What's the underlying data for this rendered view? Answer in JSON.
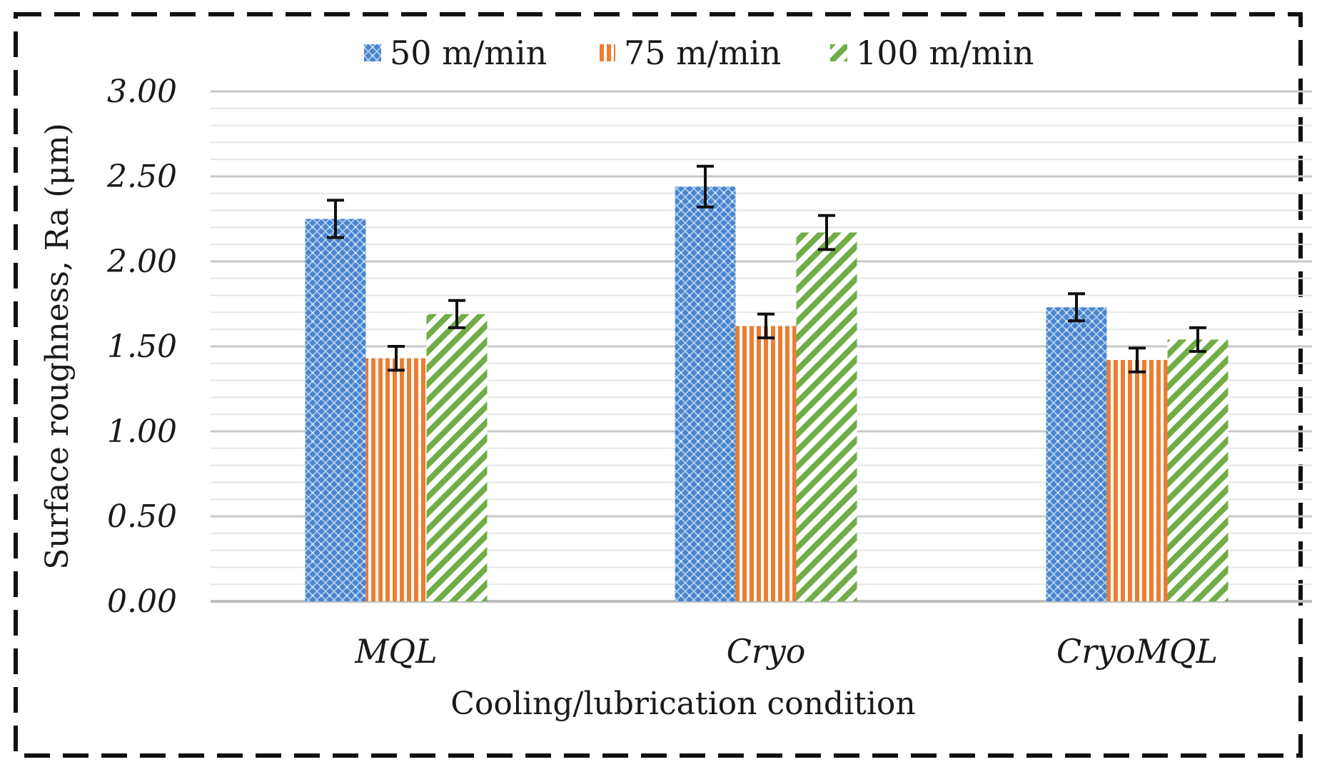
{
  "chart_data": {
    "type": "bar",
    "categories": [
      "MQL",
      "Cryo",
      "CryoMQL"
    ],
    "series": [
      {
        "name": "50 m/min",
        "values": [
          2.25,
          2.44,
          1.73
        ],
        "errors": [
          0.11,
          0.12,
          0.08
        ],
        "color": "#4a86d0",
        "pattern": "crosshatch"
      },
      {
        "name": "75 m/min",
        "values": [
          1.43,
          1.62,
          1.42
        ],
        "errors": [
          0.07,
          0.07,
          0.07
        ],
        "color": "#ed7d31",
        "pattern": "vertical-stripes"
      },
      {
        "name": "100 m/min",
        "values": [
          1.69,
          2.17,
          1.54
        ],
        "errors": [
          0.08,
          0.1,
          0.07
        ],
        "color": "#70ad47",
        "pattern": "diagonal-stripes"
      }
    ],
    "title": "",
    "xlabel": "Cooling/lubrication condition",
    "ylabel": "Surface roughness, Ra (μm)",
    "ylim": [
      0,
      3
    ],
    "yticks": [
      "0.00",
      "0.50",
      "1.00",
      "1.50",
      "2.00",
      "2.50",
      "3.00"
    ],
    "legend_position": "top-center",
    "grid": true
  }
}
